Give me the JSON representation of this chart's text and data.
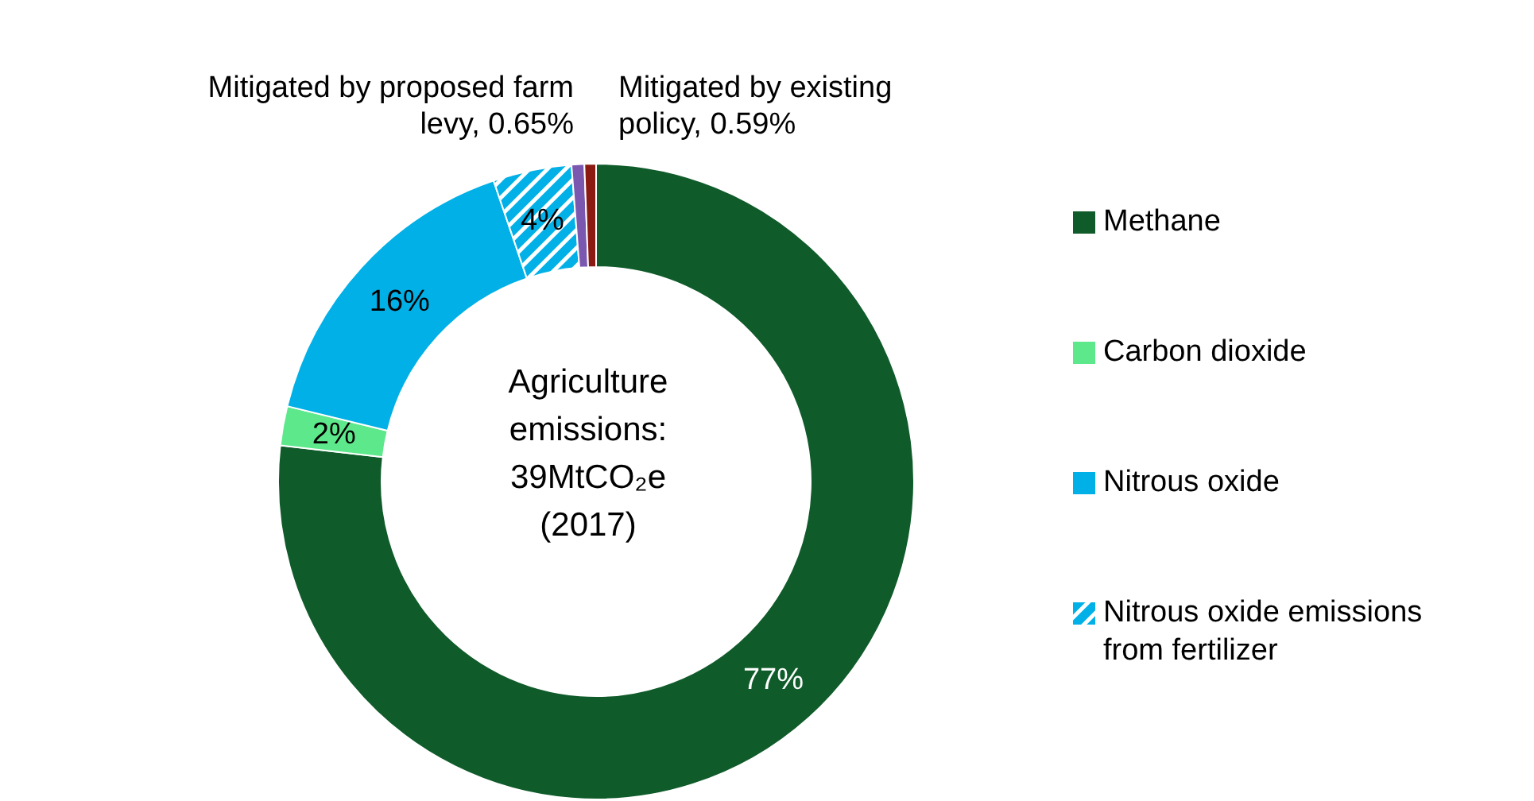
{
  "chart_data": {
    "type": "donut",
    "categories": [
      "Methane",
      "Carbon dioxide",
      "Nitrous oxide",
      "Nitrous oxide emissions from fertilizer",
      "Mitigated by proposed farm levy",
      "Mitigated by existing policy"
    ],
    "values": [
      77,
      2,
      16,
      4,
      0.65,
      0.59
    ],
    "colors": [
      "#0f5b2a",
      "#5ee88c",
      "#00b0e6",
      "#00b0e6",
      "#7b58b0",
      "#8b1a12"
    ],
    "value_labels": [
      "77%",
      "2%",
      "16%",
      "4%",
      "0.65%",
      "0.59%"
    ],
    "annotations": [
      "Agriculture emissions: 39MtCO₂e (2017)"
    ],
    "legend": "right"
  }
}
